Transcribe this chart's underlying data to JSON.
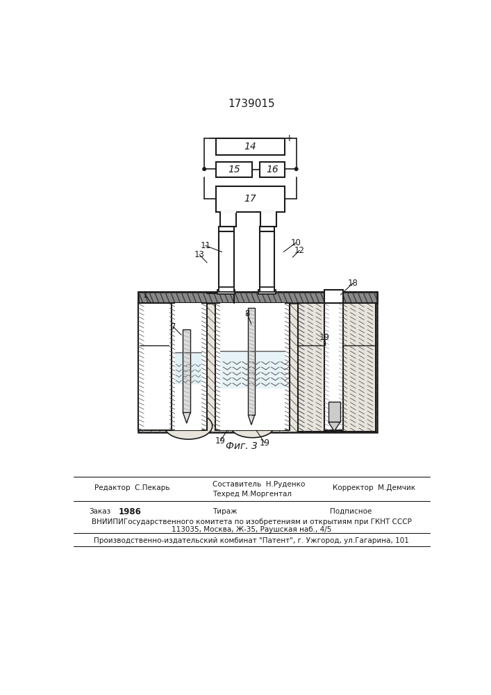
{
  "title": "1739015",
  "fig_label": "Фиг. 3",
  "line_color": "#1a1a1a",
  "bg_color": "#ffffff",
  "footer": {
    "editor": "Редактор  С.Пекарь",
    "composer": "Составитель  Н.Руденко",
    "techred": "Техред М.Моргентал",
    "corrector": "Корректор  М.Демчик",
    "order_label": "Заказ",
    "order_num": "1986",
    "tirazh": "Тираж",
    "podpisnoe": "Подписное",
    "vniip": "ВНИИПИГосударственного комитета по изобретениям и открытиям при ГКНТ СССР",
    "address": "113035, Москва, Ж-35, Раушская наб., 4/5",
    "plant": "Производственно-издательский комбинат \"Патент\", г. Ужгород, ул.Гагарина, 101"
  }
}
